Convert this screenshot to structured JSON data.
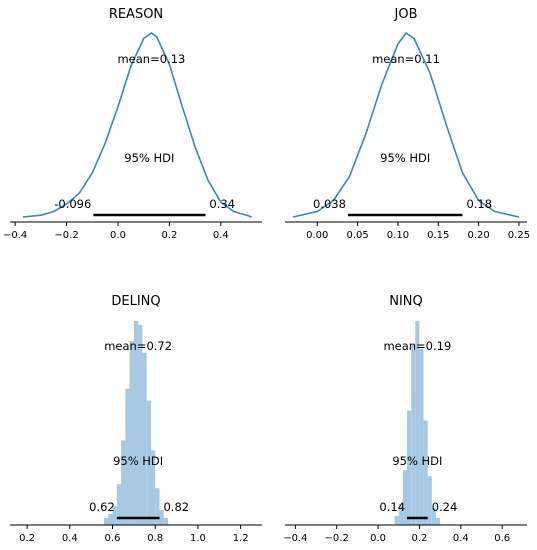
{
  "chart_data": [
    {
      "type": "area",
      "style": "kde",
      "title": "REASON",
      "mean_label": "mean=0.13",
      "hdi_label": "95% HDI",
      "hdi_low_label": "-0.096",
      "hdi_high_label": "0.34",
      "mean": 0.13,
      "hdi": [
        -0.096,
        0.34
      ],
      "xlim": [
        -0.42,
        0.56
      ],
      "xticks": [
        -0.4,
        -0.2,
        0.0,
        0.2,
        0.4
      ],
      "xtick_labels": [
        "−0.4",
        "−0.2",
        "0.0",
        "0.2",
        "0.4"
      ],
      "x": [
        -0.37,
        -0.3,
        -0.25,
        -0.2,
        -0.15,
        -0.1,
        -0.05,
        0.0,
        0.05,
        0.1,
        0.13,
        0.15,
        0.2,
        0.25,
        0.3,
        0.35,
        0.4,
        0.45,
        0.5,
        0.52
      ],
      "density": [
        0.0,
        0.01,
        0.03,
        0.07,
        0.13,
        0.24,
        0.4,
        0.6,
        0.82,
        0.97,
        1.0,
        0.98,
        0.83,
        0.6,
        0.38,
        0.2,
        0.08,
        0.03,
        0.01,
        0.0
      ]
    },
    {
      "type": "area",
      "style": "kde",
      "title": "JOB",
      "mean_label": "mean=0.11",
      "hdi_label": "95% HDI",
      "hdi_low_label": "0.038",
      "hdi_high_label": "0.18",
      "mean": 0.11,
      "hdi": [
        0.038,
        0.18
      ],
      "xlim": [
        -0.04,
        0.26
      ],
      "xticks": [
        0.0,
        0.05,
        0.1,
        0.15,
        0.2,
        0.25
      ],
      "xtick_labels": [
        "0.00",
        "0.05",
        "0.10",
        "0.15",
        "0.20",
        "0.25"
      ],
      "x": [
        -0.03,
        -0.01,
        0.0,
        0.02,
        0.04,
        0.06,
        0.08,
        0.1,
        0.11,
        0.12,
        0.14,
        0.16,
        0.18,
        0.2,
        0.22,
        0.24,
        0.25
      ],
      "density": [
        0.0,
        0.02,
        0.03,
        0.09,
        0.22,
        0.45,
        0.72,
        0.94,
        1.0,
        0.97,
        0.78,
        0.5,
        0.24,
        0.09,
        0.03,
        0.01,
        0.0
      ]
    },
    {
      "type": "bar",
      "style": "histogram",
      "title": "DELINQ",
      "mean_label": "mean=0.72",
      "hdi_label": "95% HDI",
      "hdi_low_label": "0.62",
      "hdi_high_label": "0.82",
      "mean": 0.72,
      "hdi": [
        0.62,
        0.82
      ],
      "xlim": [
        0.12,
        1.3
      ],
      "xticks": [
        0.2,
        0.4,
        0.6,
        0.8,
        1.0,
        1.2
      ],
      "xtick_labels": [
        "0.2",
        "0.4",
        "0.6",
        "0.8",
        "1.0",
        "1.2"
      ],
      "bin_width": 0.02,
      "bin_starts": [
        0.56,
        0.58,
        0.6,
        0.62,
        0.64,
        0.66,
        0.68,
        0.7,
        0.72,
        0.74,
        0.76,
        0.78,
        0.8,
        0.82,
        0.84
      ],
      "density": [
        0.01,
        0.03,
        0.07,
        0.18,
        0.4,
        0.66,
        0.9,
        1.0,
        0.98,
        0.84,
        0.6,
        0.35,
        0.16,
        0.05,
        0.01
      ]
    },
    {
      "type": "bar",
      "style": "histogram",
      "title": "NINQ",
      "mean_label": "mean=0.19",
      "hdi_label": "95% HDI",
      "hdi_low_label": "0.14",
      "hdi_high_label": "0.24",
      "mean": 0.19,
      "hdi": [
        0.14,
        0.24
      ],
      "xlim": [
        -0.45,
        0.72
      ],
      "xticks": [
        -0.4,
        -0.2,
        0.0,
        0.2,
        0.4,
        0.6
      ],
      "xtick_labels": [
        "−0.4",
        "−0.2",
        "0.0",
        "0.2",
        "0.4",
        "0.6"
      ],
      "bin_width": 0.02,
      "bin_starts": [
        0.08,
        0.1,
        0.12,
        0.14,
        0.16,
        0.18,
        0.2,
        0.22,
        0.24,
        0.26,
        0.28
      ],
      "density": [
        0.02,
        0.08,
        0.25,
        0.55,
        0.88,
        1.0,
        0.86,
        0.5,
        0.22,
        0.06,
        0.01
      ]
    }
  ],
  "colors": {
    "kde_line": "#3a87bd",
    "histogram_fill": "#a6c8e2",
    "hdi_bar": "#000000",
    "axis": "#000000"
  }
}
